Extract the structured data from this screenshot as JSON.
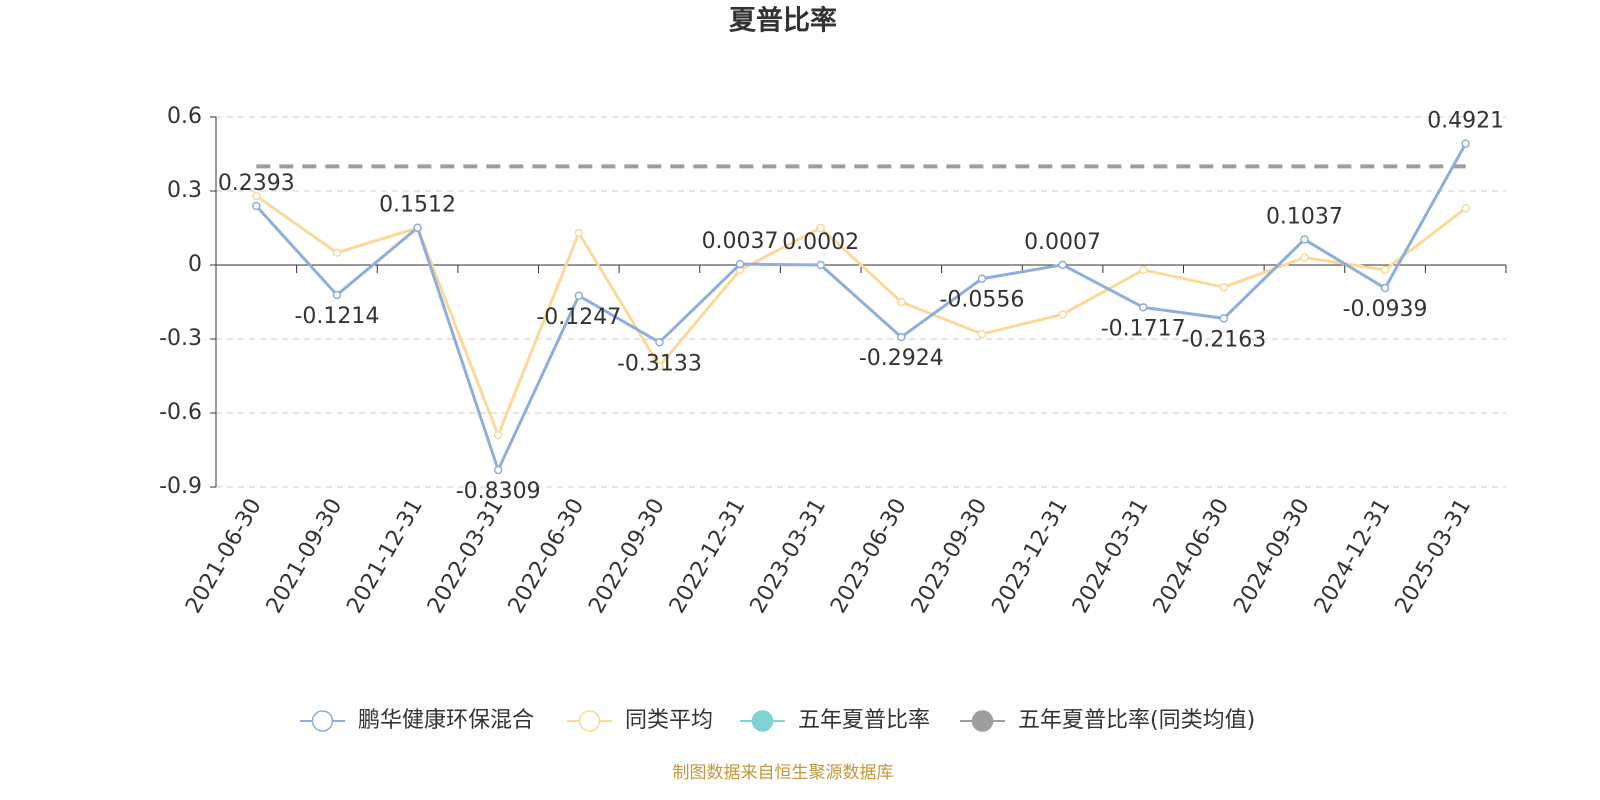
{
  "chart_data": {
    "type": "line",
    "title": "夏普比率",
    "categories": [
      "2021-06-30",
      "2021-09-30",
      "2021-12-31",
      "2022-03-31",
      "2022-06-30",
      "2022-09-30",
      "2022-12-31",
      "2023-03-31",
      "2023-06-30",
      "2023-09-30",
      "2023-12-31",
      "2024-03-31",
      "2024-06-30",
      "2024-09-30",
      "2024-12-31",
      "2025-03-31"
    ],
    "series": [
      {
        "name": "鹏华健康环保混合",
        "color": "#8eaedb",
        "values": [
          0.2393,
          -0.1214,
          0.1512,
          -0.8309,
          -0.1247,
          -0.3133,
          0.0037,
          0.0002,
          -0.2924,
          -0.0556,
          0.0007,
          -0.1717,
          -0.2163,
          0.1037,
          -0.0939,
          0.4921
        ],
        "data_labels": true
      },
      {
        "name": "同类平均",
        "color": "#fbd99a",
        "values": [
          0.28,
          0.05,
          0.15,
          -0.69,
          0.13,
          -0.41,
          -0.02,
          0.15,
          -0.15,
          -0.28,
          -0.2,
          -0.02,
          -0.09,
          0.03,
          -0.02,
          0.23
        ]
      }
    ],
    "reference_lines": [
      {
        "name": "五年夏普比率",
        "color": "#7fd3d3",
        "value": null
      },
      {
        "name": "五年夏普比率(同类均值)",
        "color": "#9e9e9e",
        "value": 0.4
      }
    ],
    "ylim": [
      -0.9,
      0.6
    ],
    "yticks": [
      0.6,
      0.3,
      0,
      -0.3,
      -0.6,
      -0.9
    ],
    "grid": true,
    "legend": "bottom",
    "source": "制图数据来自恒生聚源数据库"
  }
}
